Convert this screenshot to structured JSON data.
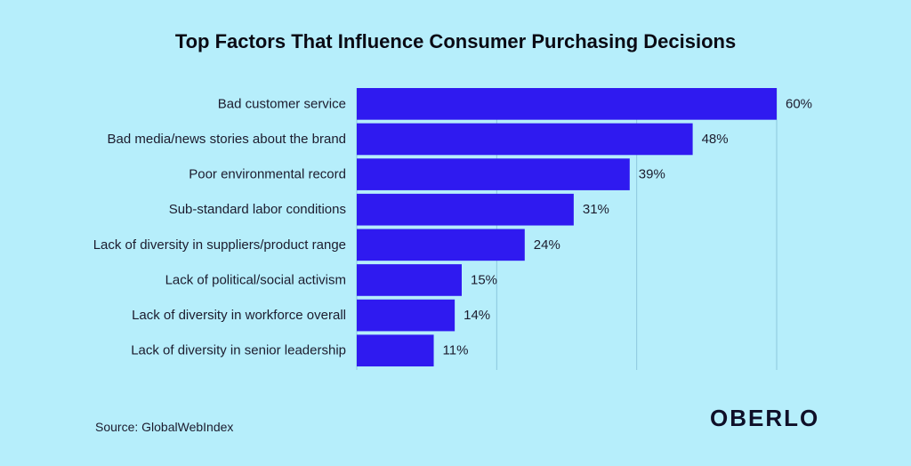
{
  "colors": {
    "background": "#B6EEFB",
    "bar": "#2F1AF0",
    "grid": "#8CC8DE"
  },
  "footer": {
    "source": "Source: GlobalWebIndex",
    "brand": "OBERLO"
  },
  "chart_data": {
    "type": "bar",
    "orientation": "horizontal",
    "title": "Top Factors That Influence Consumer Purchasing Decisions",
    "categories": [
      "Bad customer service",
      "Bad media/news stories about the brand",
      "Poor environmental record",
      "Sub-standard labor conditions",
      "Lack of diversity in suppliers/product range",
      "Lack of political/social activism",
      "Lack of diversity in workforce overall",
      "Lack of diversity in senior leadership"
    ],
    "values": [
      60,
      48,
      39,
      31,
      24,
      15,
      14,
      11
    ],
    "value_labels": [
      "60%",
      "48%",
      "39%",
      "31%",
      "24%",
      "15%",
      "14%",
      "11%"
    ],
    "xlim": [
      0,
      60
    ],
    "grid": true
  }
}
